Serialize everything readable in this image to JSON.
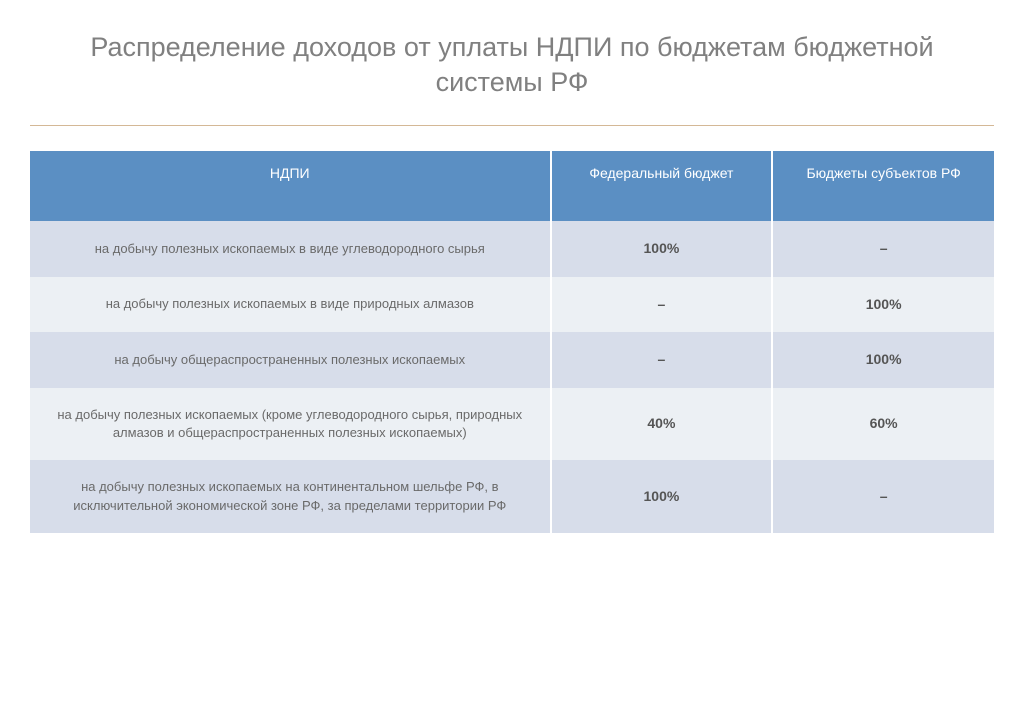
{
  "title": "Распределение доходов от уплаты НДПИ по бюджетам бюджетной системы РФ",
  "table": {
    "columns": [
      "НДПИ",
      "Федеральный бюджет",
      "Бюджеты субъектов РФ"
    ],
    "columnWidths": [
      "54%",
      "23%",
      "23%"
    ],
    "headerBg": "#5b8fc3",
    "headerTextColor": "#ffffff",
    "rowOddBg": "#d7ddea",
    "rowEvenBg": "#ecf0f4",
    "rows": [
      {
        "label": "на добычу полезных ископаемых в виде углеводородного сырья",
        "federal": "100%",
        "regional": "–"
      },
      {
        "label": "на добычу полезных ископаемых в виде природных алмазов",
        "federal": "–",
        "regional": "100%"
      },
      {
        "label": "на добычу общераспространенных полезных ископаемых",
        "federal": "–",
        "regional": "100%"
      },
      {
        "label": "на добычу полезных ископаемых (кроме углеводородного сырья, природных алмазов и общераспространенных полезных ископаемых)",
        "federal": "40%",
        "regional": "60%"
      },
      {
        "label": "на добычу полезных ископаемых на континентальном шельфе РФ, в исключительной экономической зоне РФ, за пределами территории РФ",
        "federal": "100%",
        "regional": "–"
      }
    ]
  },
  "styling": {
    "titleColor": "#808080",
    "titleFontSize": 27,
    "bodyTextColor": "#6a6a6a",
    "dataCellColor": "#555555",
    "hrColor": "#d4b896",
    "backgroundColor": "#ffffff"
  }
}
